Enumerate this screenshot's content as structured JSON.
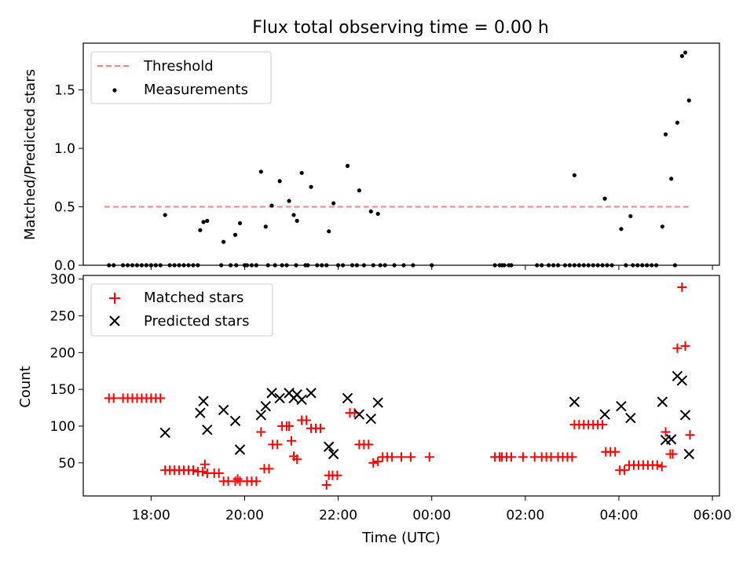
{
  "title": "Flux total observing time = 0.00 h",
  "chart_data": [
    {
      "type": "scatter",
      "ylabel": "Matched/Predicted stars",
      "xlim": [
        16.55,
        30.15
      ],
      "ylim": [
        0,
        1.9
      ],
      "yticks": [
        0.0,
        0.5,
        1.0,
        1.5
      ],
      "ytick_labels": [
        "0.0",
        "0.5",
        "1.0",
        "1.5"
      ],
      "legend_position": "upper left",
      "threshold": {
        "name": "Threshold",
        "value": 0.5,
        "x": [
          17.0,
          29.55
        ],
        "color": "#ff7f7f",
        "style": "dashed"
      },
      "series": [
        {
          "name": "Measurements",
          "color": "#000000",
          "marker": "dot",
          "points": [
            [
              17.1,
              0
            ],
            [
              17.2,
              0
            ],
            [
              17.4,
              0
            ],
            [
              17.5,
              0
            ],
            [
              17.6,
              0
            ],
            [
              17.7,
              0
            ],
            [
              17.8,
              0
            ],
            [
              17.9,
              0
            ],
            [
              18.0,
              0
            ],
            [
              18.1,
              0
            ],
            [
              18.2,
              0
            ],
            [
              18.3,
              0.43
            ],
            [
              18.4,
              0
            ],
            [
              18.5,
              0
            ],
            [
              18.6,
              0
            ],
            [
              18.7,
              0
            ],
            [
              18.8,
              0
            ],
            [
              18.9,
              0
            ],
            [
              19.0,
              0
            ],
            [
              19.05,
              0.3
            ],
            [
              19.12,
              0.37
            ],
            [
              19.2,
              0.38
            ],
            [
              19.5,
              0
            ],
            [
              19.55,
              0.2
            ],
            [
              19.7,
              0
            ],
            [
              19.8,
              0.26
            ],
            [
              19.82,
              0
            ],
            [
              19.9,
              0.36
            ],
            [
              20.0,
              0
            ],
            [
              20.05,
              0
            ],
            [
              20.15,
              0
            ],
            [
              20.25,
              0
            ],
            [
              20.35,
              0.8
            ],
            [
              20.45,
              0.33
            ],
            [
              20.5,
              0
            ],
            [
              20.58,
              0.51
            ],
            [
              20.65,
              0
            ],
            [
              20.75,
              0.72
            ],
            [
              20.8,
              0
            ],
            [
              20.9,
              0
            ],
            [
              20.95,
              0.55
            ],
            [
              21.05,
              0.43
            ],
            [
              21.1,
              0
            ],
            [
              21.12,
              0.38
            ],
            [
              21.22,
              0.79
            ],
            [
              21.3,
              0
            ],
            [
              21.35,
              0
            ],
            [
              21.42,
              0.67
            ],
            [
              21.55,
              0
            ],
            [
              21.65,
              0
            ],
            [
              21.75,
              0
            ],
            [
              21.8,
              0.29
            ],
            [
              21.9,
              0.53
            ],
            [
              22.0,
              0
            ],
            [
              22.1,
              0
            ],
            [
              22.2,
              0.85
            ],
            [
              22.3,
              0
            ],
            [
              22.4,
              0
            ],
            [
              22.45,
              0.64
            ],
            [
              22.55,
              0
            ],
            [
              22.7,
              0.46
            ],
            [
              22.75,
              0
            ],
            [
              22.85,
              0.44
            ],
            [
              22.9,
              0
            ],
            [
              23.0,
              0
            ],
            [
              23.2,
              0
            ],
            [
              23.4,
              0
            ],
            [
              23.6,
              0
            ],
            [
              24.0,
              0
            ],
            [
              25.35,
              0
            ],
            [
              25.45,
              0
            ],
            [
              25.5,
              0
            ],
            [
              25.55,
              0
            ],
            [
              25.65,
              0
            ],
            [
              25.7,
              0
            ],
            [
              26.25,
              0
            ],
            [
              26.35,
              0
            ],
            [
              26.5,
              0
            ],
            [
              26.6,
              0
            ],
            [
              26.7,
              0
            ],
            [
              26.85,
              0
            ],
            [
              26.95,
              0
            ],
            [
              27.05,
              0
            ],
            [
              27.15,
              0
            ],
            [
              27.25,
              0
            ],
            [
              27.35,
              0
            ],
            [
              27.05,
              0.77
            ],
            [
              27.45,
              0
            ],
            [
              27.55,
              0
            ],
            [
              27.65,
              0
            ],
            [
              27.7,
              0.57
            ],
            [
              27.75,
              0
            ],
            [
              27.85,
              0
            ],
            [
              28.05,
              0.31
            ],
            [
              28.15,
              0
            ],
            [
              28.25,
              0.42
            ],
            [
              28.3,
              0
            ],
            [
              28.4,
              0
            ],
            [
              28.5,
              0
            ],
            [
              28.6,
              0
            ],
            [
              28.7,
              0
            ],
            [
              28.8,
              0
            ],
            [
              28.93,
              0.33
            ],
            [
              29.0,
              1.12
            ],
            [
              29.12,
              0.74
            ],
            [
              29.2,
              0
            ],
            [
              29.25,
              1.22
            ],
            [
              29.35,
              1.79
            ],
            [
              29.42,
              1.82
            ],
            [
              29.5,
              1.41
            ]
          ]
        }
      ]
    },
    {
      "type": "scatter",
      "xlabel": "Time (UTC)",
      "ylabel": "Count",
      "xlim": [
        16.55,
        30.15
      ],
      "ylim": [
        5,
        305
      ],
      "xticks": [
        18,
        20,
        22,
        24,
        26,
        28,
        30
      ],
      "xtick_labels": [
        "18:00",
        "20:00",
        "22:00",
        "00:00",
        "02:00",
        "04:00",
        "06:00"
      ],
      "yticks": [
        50,
        100,
        150,
        200,
        250,
        300
      ],
      "ytick_labels": [
        "50",
        "100",
        "150",
        "200",
        "250",
        "300"
      ],
      "legend_position": "upper left",
      "series": [
        {
          "name": "Matched stars",
          "color": "#ff0000",
          "marker": "plus",
          "points": [
            [
              17.1,
              138
            ],
            [
              17.2,
              138
            ],
            [
              17.4,
              138
            ],
            [
              17.5,
              138
            ],
            [
              17.6,
              138
            ],
            [
              17.7,
              138
            ],
            [
              17.8,
              138
            ],
            [
              17.9,
              138
            ],
            [
              18.0,
              138
            ],
            [
              18.1,
              138
            ],
            [
              18.2,
              138
            ],
            [
              18.3,
              40
            ],
            [
              18.4,
              40
            ],
            [
              18.5,
              40
            ],
            [
              18.6,
              40
            ],
            [
              18.7,
              40
            ],
            [
              18.8,
              40
            ],
            [
              18.9,
              40
            ],
            [
              19.0,
              38
            ],
            [
              19.1,
              38
            ],
            [
              19.15,
              48
            ],
            [
              19.2,
              36
            ],
            [
              19.35,
              36
            ],
            [
              19.45,
              36
            ],
            [
              19.55,
              25
            ],
            [
              19.65,
              25
            ],
            [
              19.8,
              25
            ],
            [
              19.85,
              28
            ],
            [
              19.9,
              25
            ],
            [
              20.05,
              25
            ],
            [
              20.15,
              25
            ],
            [
              20.25,
              25
            ],
            [
              20.35,
              92
            ],
            [
              20.42,
              42
            ],
            [
              20.52,
              42
            ],
            [
              20.6,
              75
            ],
            [
              20.7,
              75
            ],
            [
              20.8,
              100
            ],
            [
              20.9,
              100
            ],
            [
              20.95,
              100
            ],
            [
              21.0,
              80
            ],
            [
              21.05,
              59
            ],
            [
              21.12,
              55
            ],
            [
              21.22,
              108
            ],
            [
              21.32,
              108
            ],
            [
              21.42,
              97
            ],
            [
              21.52,
              97
            ],
            [
              21.62,
              97
            ],
            [
              21.75,
              20
            ],
            [
              21.8,
              33
            ],
            [
              21.88,
              33
            ],
            [
              21.98,
              33
            ],
            [
              22.25,
              118
            ],
            [
              22.35,
              118
            ],
            [
              22.45,
              75
            ],
            [
              22.55,
              75
            ],
            [
              22.65,
              75
            ],
            [
              22.75,
              50
            ],
            [
              22.85,
              52
            ],
            [
              22.95,
              58
            ],
            [
              23.05,
              58
            ],
            [
              23.15,
              58
            ],
            [
              23.35,
              58
            ],
            [
              23.55,
              58
            ],
            [
              23.95,
              58
            ],
            [
              25.35,
              58
            ],
            [
              25.45,
              58
            ],
            [
              25.5,
              58
            ],
            [
              25.6,
              58
            ],
            [
              25.7,
              58
            ],
            [
              25.95,
              58
            ],
            [
              26.2,
              58
            ],
            [
              26.35,
              58
            ],
            [
              26.45,
              58
            ],
            [
              26.55,
              58
            ],
            [
              26.7,
              58
            ],
            [
              26.8,
              58
            ],
            [
              26.9,
              58
            ],
            [
              27.0,
              58
            ],
            [
              27.05,
              102
            ],
            [
              27.15,
              102
            ],
            [
              27.25,
              102
            ],
            [
              27.35,
              102
            ],
            [
              27.45,
              102
            ],
            [
              27.55,
              102
            ],
            [
              27.65,
              102
            ],
            [
              27.72,
              65
            ],
            [
              27.82,
              65
            ],
            [
              27.92,
              65
            ],
            [
              28.02,
              40
            ],
            [
              28.12,
              40
            ],
            [
              28.22,
              47
            ],
            [
              28.32,
              47
            ],
            [
              28.42,
              47
            ],
            [
              28.52,
              47
            ],
            [
              28.62,
              47
            ],
            [
              28.72,
              47
            ],
            [
              28.82,
              47
            ],
            [
              28.92,
              45
            ],
            [
              29.0,
              92
            ],
            [
              29.1,
              62
            ],
            [
              29.15,
              62
            ],
            [
              29.25,
              206
            ],
            [
              29.35,
              289
            ],
            [
              29.42,
              209
            ],
            [
              29.52,
              88
            ]
          ]
        },
        {
          "name": "Predicted stars",
          "color": "#000000",
          "marker": "x",
          "points": [
            [
              18.3,
              91
            ],
            [
              19.05,
              118
            ],
            [
              19.12,
              134
            ],
            [
              19.2,
              95
            ],
            [
              19.55,
              122
            ],
            [
              19.8,
              107
            ],
            [
              19.9,
              68
            ],
            [
              20.35,
              115
            ],
            [
              20.45,
              127
            ],
            [
              20.58,
              145
            ],
            [
              20.75,
              138
            ],
            [
              20.95,
              145
            ],
            [
              21.05,
              138
            ],
            [
              21.12,
              143
            ],
            [
              21.22,
              136
            ],
            [
              21.42,
              145
            ],
            [
              21.8,
              72
            ],
            [
              21.9,
              62
            ],
            [
              22.2,
              138
            ],
            [
              22.45,
              116
            ],
            [
              22.7,
              110
            ],
            [
              22.85,
              132
            ],
            [
              27.05,
              133
            ],
            [
              27.7,
              116
            ],
            [
              28.05,
              127
            ],
            [
              28.25,
              111
            ],
            [
              28.93,
              133
            ],
            [
              29.0,
              81
            ],
            [
              29.12,
              82
            ],
            [
              29.25,
              168
            ],
            [
              29.35,
              162
            ],
            [
              29.42,
              115
            ],
            [
              29.5,
              62
            ]
          ]
        }
      ]
    }
  ]
}
